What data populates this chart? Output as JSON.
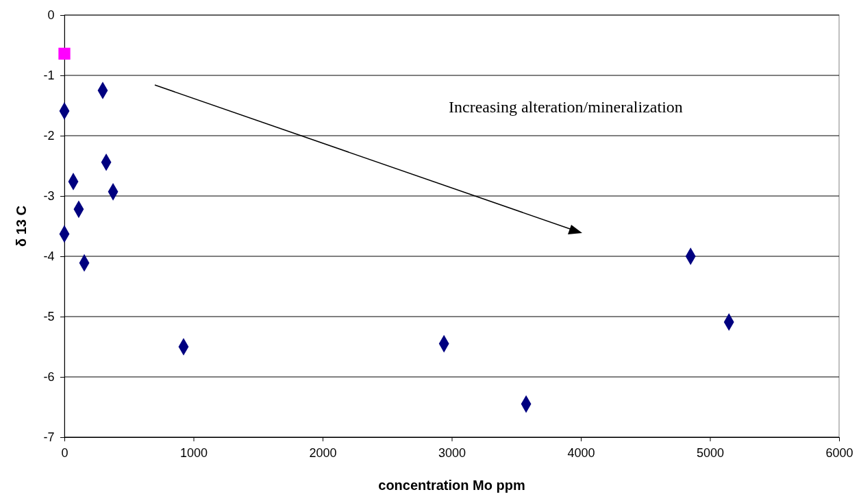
{
  "chart_data": {
    "type": "scatter",
    "xlabel": "concentration Mo ppm",
    "ylabel": "δ 13 C",
    "xlim": [
      0,
      6000
    ],
    "xticks": [
      0,
      1000,
      2000,
      3000,
      4000,
      5000,
      6000
    ],
    "ylim": [
      -7,
      0
    ],
    "yticks": [
      -7,
      -6,
      -5,
      -4,
      -3,
      -2,
      -1,
      0
    ],
    "grid": "y",
    "series": [
      {
        "color": "#000080",
        "marker": "diamond",
        "x": [
          0,
          297,
          324,
          69,
          377,
          111,
          0,
          154,
          923,
          2940,
          3576,
          4850,
          5147
        ],
        "values": [
          -1.59,
          -1.25,
          -2.44,
          -2.76,
          -2.93,
          -3.22,
          -3.63,
          -4.11,
          -5.5,
          -5.45,
          -6.45,
          -4.0,
          -5.09
        ]
      },
      {
        "color": "#ff00ff",
        "marker": "square",
        "x": [
          0
        ],
        "values": [
          -0.64
        ]
      }
    ],
    "annotations": [
      "Increasing alteration/mineralization"
    ]
  }
}
